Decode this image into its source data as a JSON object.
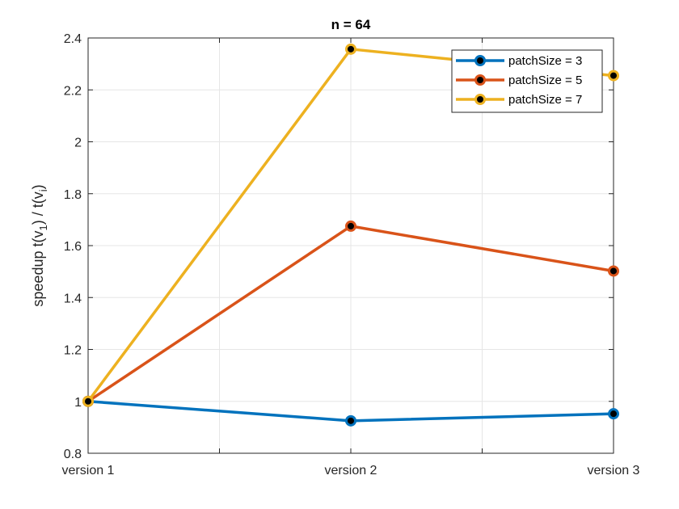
{
  "chart_data": {
    "type": "line",
    "title": "n = 64",
    "ylabel": {
      "main": "speedup t(v",
      "sub1": "1",
      "mid": ") / t(v",
      "sub2": "i",
      "end": ")"
    },
    "xlabel": "",
    "categories": [
      "version 1",
      "version 2",
      "version 3"
    ],
    "ylim": [
      0.8,
      2.4
    ],
    "yticks": [
      "0.8",
      "1",
      "1.2",
      "1.4",
      "1.6",
      "1.8",
      "2",
      "2.2",
      "2.4"
    ],
    "grid": true,
    "legend_position": "top-right",
    "series": [
      {
        "name": "patchSize = 3",
        "color": "#0072BD",
        "values": [
          1.0,
          0.925,
          0.952
        ]
      },
      {
        "name": "patchSize = 5",
        "color": "#D95319",
        "values": [
          1.0,
          1.675,
          1.502
        ]
      },
      {
        "name": "patchSize = 7",
        "color": "#EDB120",
        "values": [
          1.0,
          2.357,
          2.255
        ]
      }
    ]
  }
}
